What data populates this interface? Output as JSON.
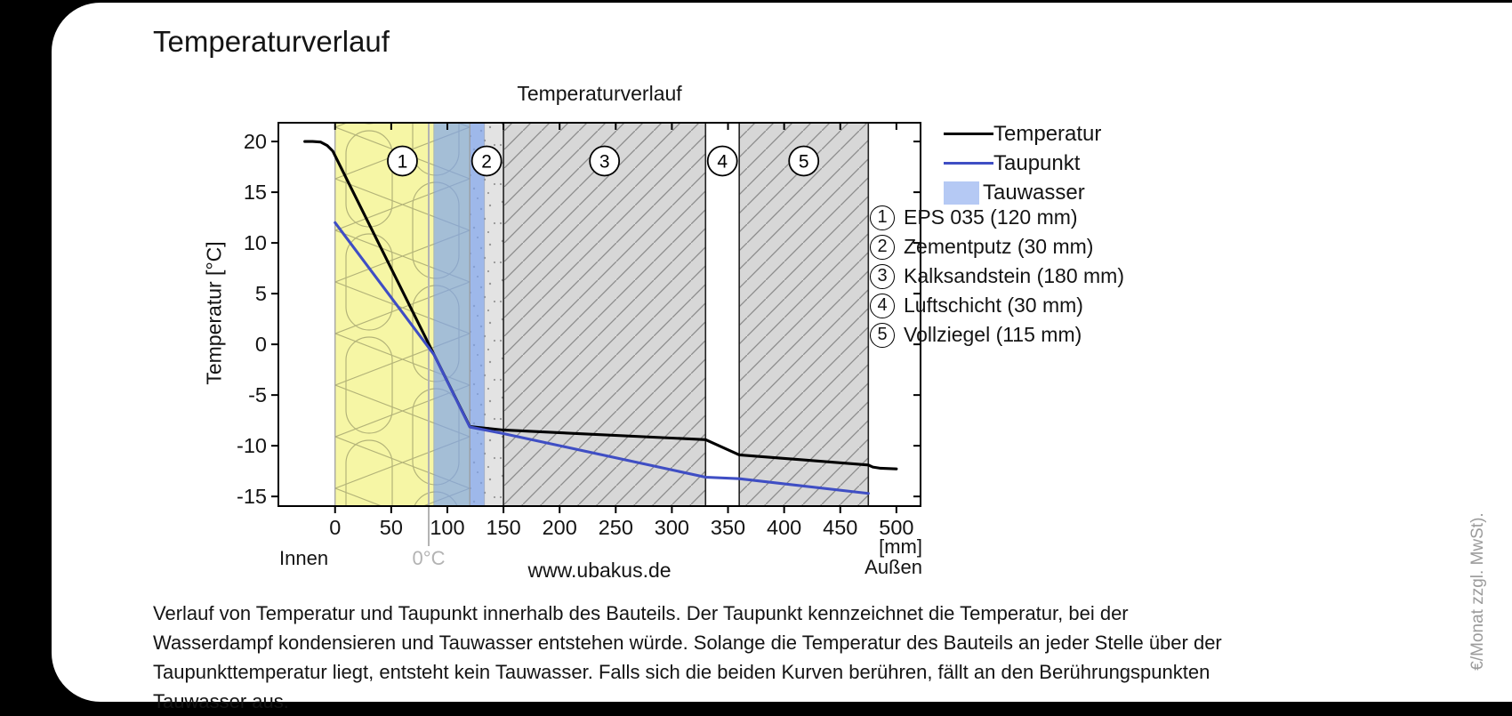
{
  "page": {
    "title": "Temperaturverlauf",
    "side_note": "€/Monat zzgl. MwSt)."
  },
  "chart_data": {
    "type": "line",
    "title": "Temperaturverlauf",
    "ylabel": "Temperatur [°C]",
    "x_unit_label": "[mm]",
    "inner_label": "Innen",
    "outer_label": "Außen",
    "watermark": "www.ubakus.de",
    "xlim": [
      -50.5,
      521.5
    ],
    "ylim": [
      -15.95,
      21.85
    ],
    "x_ticks": [
      0,
      50,
      100,
      150,
      200,
      250,
      300,
      350,
      400,
      450,
      500
    ],
    "y_ticks": [
      -15,
      -10,
      -5,
      0,
      5,
      10,
      15,
      20
    ],
    "zero_line": {
      "x_mm": 83.4,
      "label": "0°C",
      "color": "#b3b3b3"
    },
    "layers": [
      {
        "num": "1",
        "name": "EPS 035",
        "from_mm": 0,
        "to_mm": 120,
        "fill": "#f6f6a5",
        "pattern": "insulation",
        "edge": "light"
      },
      {
        "num": "2",
        "name": "Zementputz",
        "from_mm": 120,
        "to_mm": 150,
        "fill": "#e3e3e3",
        "pattern": "plaster",
        "edge": "light"
      },
      {
        "num": "3",
        "name": "Kalksandstein",
        "from_mm": 150,
        "to_mm": 330,
        "fill": "#d7d7d7",
        "pattern": "hatch",
        "edge": "strong"
      },
      {
        "num": "4",
        "name": "Luftschicht",
        "from_mm": 330,
        "to_mm": 360,
        "fill": "#ffffff",
        "pattern": "none",
        "edge": "strong"
      },
      {
        "num": "5",
        "name": "Vollziegel",
        "from_mm": 360,
        "to_mm": 475,
        "fill": "#d7d7d7",
        "pattern": "hatch",
        "edge": "strong"
      }
    ],
    "condensation_band": {
      "from_mm": 88,
      "to_mm": 133,
      "color": "#7ea4ee",
      "opacity": 0.68
    },
    "series": [
      {
        "name": "Temperatur",
        "color": "#000000",
        "points": [
          [
            -27,
            20
          ],
          [
            -20,
            20
          ],
          [
            -13,
            19.95
          ],
          [
            -7,
            19.6
          ],
          [
            -2,
            19.05
          ],
          [
            0,
            18.6
          ],
          [
            120,
            -8.1
          ],
          [
            150,
            -8.45
          ],
          [
            330,
            -9.4
          ],
          [
            360,
            -10.9
          ],
          [
            475,
            -11.9
          ],
          [
            479,
            -12.1
          ],
          [
            486,
            -12.22
          ],
          [
            500,
            -12.28
          ]
        ]
      },
      {
        "name": "Taupunkt",
        "color": "#3f4ec4",
        "points": [
          [
            0,
            12
          ],
          [
            88,
            -1.0
          ],
          [
            120,
            -8.15
          ],
          [
            150,
            -8.8
          ],
          [
            330,
            -13.1
          ],
          [
            360,
            -13.25
          ],
          [
            475,
            -14.7
          ]
        ]
      }
    ],
    "legend": [
      {
        "label": "Temperatur",
        "type": "line",
        "color": "#000000"
      },
      {
        "label": "Taupunkt",
        "type": "line",
        "color": "#3f4ec4"
      },
      {
        "label": "Tauwasser",
        "type": "swatch",
        "color": "#b5c9f4"
      }
    ],
    "materials": [
      {
        "num": "1",
        "label": "EPS 035 (120 mm)"
      },
      {
        "num": "2",
        "label": "Zementputz (30 mm)"
      },
      {
        "num": "3",
        "label": "Kalksandstein (180 mm)"
      },
      {
        "num": "4",
        "label": "Luftschicht (30 mm)"
      },
      {
        "num": "5",
        "label": "Vollziegel (115 mm)"
      }
    ]
  },
  "footer": {
    "lines": [
      "Verlauf von Temperatur und Taupunkt innerhalb des Bauteils. Der Taupunkt kennzeichnet die Temperatur, bei der",
      "Wasserdampf kondensieren und Tauwasser entstehen würde. Solange die Temperatur des Bauteils an jeder Stelle über der",
      "Taupunkttemperatur liegt, entsteht kein Tauwasser. Falls sich die beiden Kurven berühren, fällt an den Berührungspunkten",
      "Tauwasser aus."
    ]
  }
}
